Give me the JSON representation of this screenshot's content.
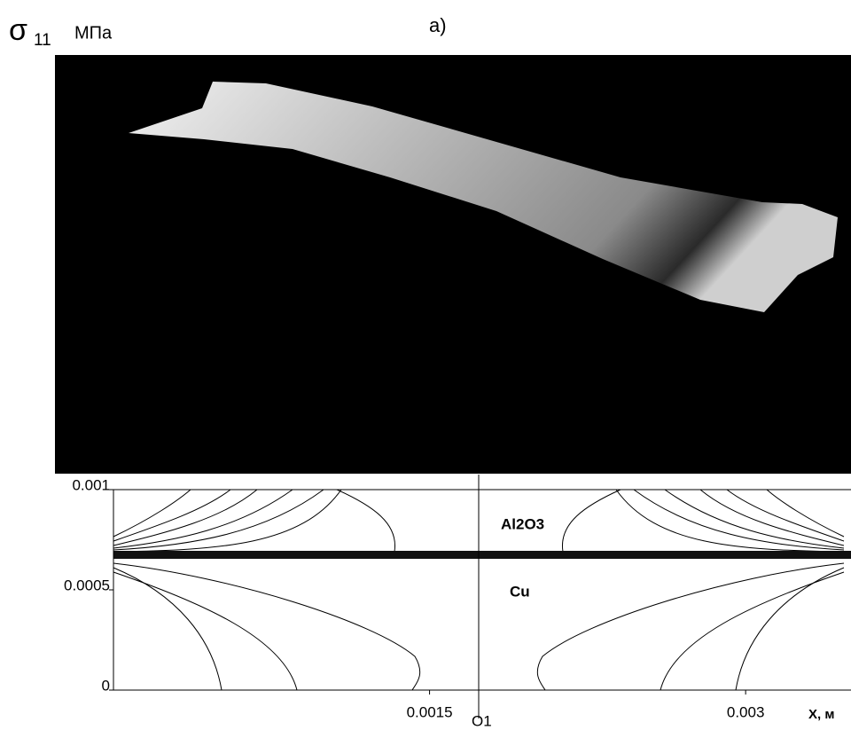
{
  "chart_data": {
    "type": "contour",
    "title": "а)",
    "y_symbol": "σ",
    "y_subscript": "11",
    "y_unit": "МПа",
    "x_label": "X, м",
    "center_label": "O1",
    "annotations": [
      "Al2O3",
      "Cu"
    ],
    "xlim": [
      0,
      0.0035
    ],
    "ylim": [
      0,
      0.001
    ],
    "xticks": [
      0.0015,
      0.003
    ],
    "yticks": [
      0,
      0.0005,
      0.001
    ]
  }
}
